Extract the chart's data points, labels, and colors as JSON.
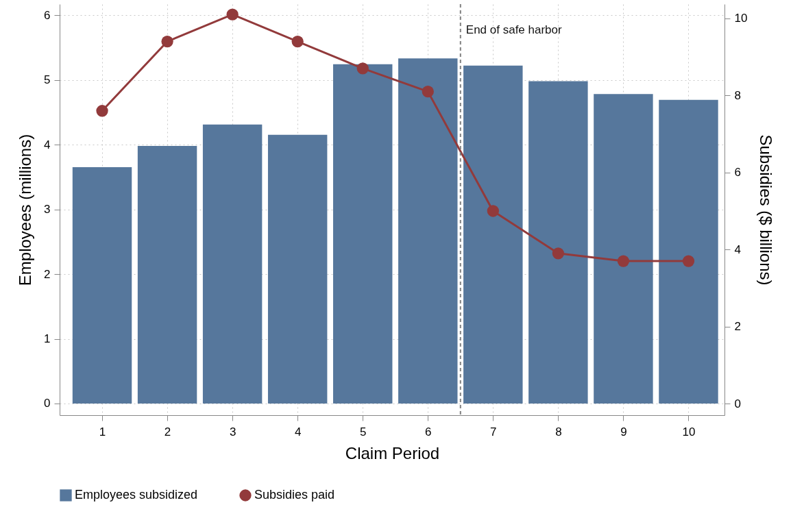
{
  "chart_data": {
    "type": "bar",
    "xlabel": "Claim Period",
    "ylabel": "Employees (millions)",
    "y2label": "Subsidies ($ billions)",
    "x": [
      1,
      2,
      3,
      4,
      5,
      6,
      7,
      8,
      9,
      10
    ],
    "series": [
      {
        "name": "Employees subsidized",
        "color": "#56779c",
        "values": [
          3.65,
          3.98,
          4.31,
          4.15,
          5.24,
          5.33,
          5.22,
          4.98,
          4.78,
          4.69
        ]
      },
      {
        "name": "Subsidies paid",
        "type": "line",
        "axis": "y2",
        "color": "#923a3b",
        "marker": "circle",
        "values": [
          7.6,
          9.4,
          10.1,
          9.4,
          8.7,
          8.1,
          5.0,
          3.9,
          3.7,
          3.7
        ]
      }
    ],
    "xlim": [
      0.4,
      10.5
    ],
    "xticks": [
      1,
      2,
      3,
      4,
      5,
      6,
      7,
      8,
      9,
      10
    ],
    "ylim": [
      -0.18,
      6.17
    ],
    "yticks": [
      0,
      1,
      2,
      3,
      4,
      5,
      6
    ],
    "y2lim": [
      -0.3,
      10.37
    ],
    "y2ticks": [
      0,
      2,
      4,
      6,
      8,
      10
    ],
    "ref_lines": [
      {
        "axis": "x",
        "value": 6.5,
        "label": "End of safe harbor",
        "line_style": "dashed",
        "color": "#808080"
      }
    ],
    "grid": true,
    "legend": "bottom"
  }
}
